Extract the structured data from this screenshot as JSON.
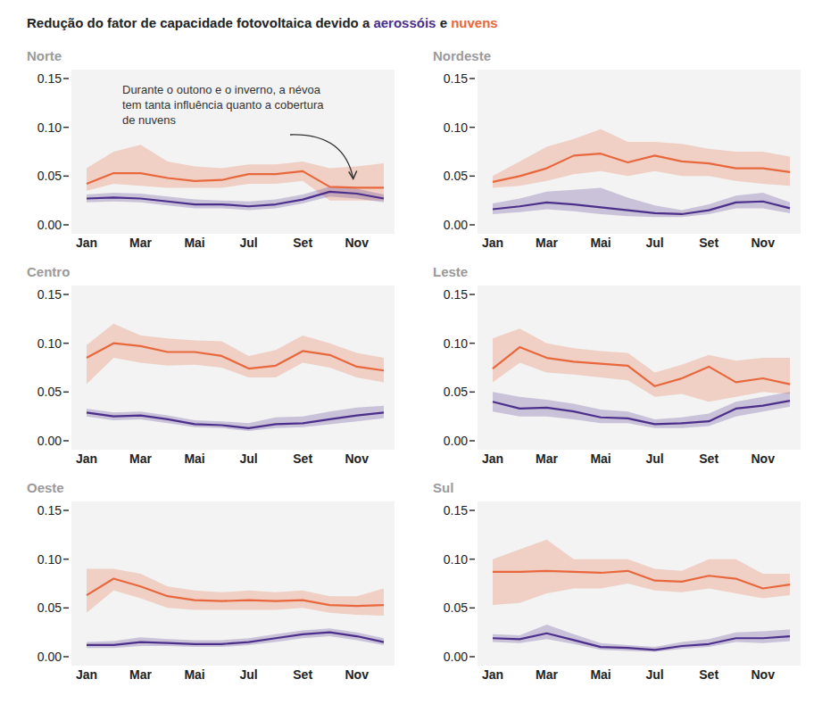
{
  "title": "Redução do fator de capacidade fotovoltaica devido a aerossóis e nuvens",
  "chart_data": [
    {
      "type": "line",
      "title": "Norte",
      "categories": [
        "Jan",
        null,
        "Mar",
        null,
        "Mai",
        null,
        "Jul",
        null,
        "Set",
        null,
        "Nov",
        null
      ],
      "ylim": [
        0,
        0.15
      ],
      "yticks": [
        {
          "value": 0,
          "label": "0.00"
        },
        {
          "value": 0.05,
          "label": "0.05"
        },
        {
          "value": 0.1,
          "label": "0.10"
        },
        {
          "value": 0.15,
          "label": "0.15"
        }
      ],
      "grid": false,
      "annotation": [
        "Durante o outono e o inverno, a névoa",
        " tem tanta influência quanto a cobertura",
        "de nuvens"
      ],
      "series": [
        {
          "name": "aerossóis",
          "color": "#4b2f8a",
          "values": [
            0.027,
            0.028,
            0.027,
            0.024,
            0.021,
            0.021,
            0.019,
            0.021,
            0.026,
            0.034,
            0.032,
            0.027
          ],
          "lower": [
            0.023,
            0.024,
            0.023,
            0.02,
            0.017,
            0.017,
            0.015,
            0.017,
            0.022,
            0.029,
            0.027,
            0.023
          ],
          "upper": [
            0.031,
            0.033,
            0.032,
            0.029,
            0.026,
            0.025,
            0.024,
            0.026,
            0.031,
            0.039,
            0.037,
            0.031
          ]
        },
        {
          "name": "nuvens",
          "color": "#e8673c",
          "values": [
            0.042,
            0.053,
            0.053,
            0.048,
            0.045,
            0.046,
            0.052,
            0.052,
            0.055,
            0.039,
            0.038,
            0.038
          ],
          "lower": [
            0.035,
            0.042,
            0.04,
            0.038,
            0.038,
            0.038,
            0.042,
            0.042,
            0.045,
            0.025,
            0.025,
            0.025
          ],
          "upper": [
            0.058,
            0.075,
            0.082,
            0.065,
            0.06,
            0.058,
            0.062,
            0.062,
            0.065,
            0.058,
            0.06,
            0.063
          ]
        }
      ]
    },
    {
      "type": "line",
      "title": "Nordeste",
      "categories": [
        "Jan",
        null,
        "Mar",
        null,
        "Mai",
        null,
        "Jul",
        null,
        "Set",
        null,
        "Nov",
        null
      ],
      "ylim": [
        0,
        0.15
      ],
      "yticks": [
        {
          "value": 0,
          "label": "0.00"
        },
        {
          "value": 0.05,
          "label": "0.05"
        },
        {
          "value": 0.1,
          "label": "0.10"
        },
        {
          "value": 0.15,
          "label": "0.15"
        }
      ],
      "grid": false,
      "series": [
        {
          "name": "aerossóis",
          "color": "#4b2f8a",
          "values": [
            0.016,
            0.019,
            0.023,
            0.021,
            0.018,
            0.015,
            0.012,
            0.011,
            0.015,
            0.023,
            0.024,
            0.017
          ],
          "lower": [
            0.011,
            0.013,
            0.016,
            0.014,
            0.011,
            0.009,
            0.008,
            0.008,
            0.011,
            0.017,
            0.017,
            0.012
          ],
          "upper": [
            0.022,
            0.027,
            0.034,
            0.036,
            0.038,
            0.028,
            0.02,
            0.015,
            0.021,
            0.03,
            0.033,
            0.023
          ]
        },
        {
          "name": "nuvens",
          "color": "#e8673c",
          "values": [
            0.044,
            0.05,
            0.058,
            0.071,
            0.073,
            0.064,
            0.071,
            0.065,
            0.063,
            0.058,
            0.058,
            0.054
          ],
          "lower": [
            0.038,
            0.04,
            0.045,
            0.052,
            0.055,
            0.05,
            0.055,
            0.05,
            0.05,
            0.045,
            0.042,
            0.04
          ],
          "upper": [
            0.05,
            0.065,
            0.08,
            0.088,
            0.098,
            0.085,
            0.085,
            0.083,
            0.078,
            0.075,
            0.075,
            0.07
          ]
        }
      ]
    },
    {
      "type": "line",
      "title": "Centro",
      "categories": [
        "Jan",
        null,
        "Mar",
        null,
        "Mai",
        null,
        "Jul",
        null,
        "Set",
        null,
        "Nov",
        null
      ],
      "ylim": [
        0,
        0.15
      ],
      "yticks": [
        {
          "value": 0,
          "label": "0.00"
        },
        {
          "value": 0.05,
          "label": "0.05"
        },
        {
          "value": 0.1,
          "label": "0.10"
        },
        {
          "value": 0.15,
          "label": "0.15"
        }
      ],
      "grid": false,
      "series": [
        {
          "name": "aerossóis",
          "color": "#4b2f8a",
          "values": [
            0.029,
            0.025,
            0.026,
            0.022,
            0.017,
            0.016,
            0.013,
            0.017,
            0.018,
            0.022,
            0.026,
            0.029
          ],
          "lower": [
            0.025,
            0.021,
            0.022,
            0.018,
            0.014,
            0.013,
            0.01,
            0.013,
            0.014,
            0.017,
            0.02,
            0.023
          ],
          "upper": [
            0.033,
            0.029,
            0.03,
            0.026,
            0.021,
            0.02,
            0.018,
            0.024,
            0.025,
            0.03,
            0.034,
            0.036
          ]
        },
        {
          "name": "nuvens",
          "color": "#e8673c",
          "values": [
            0.085,
            0.1,
            0.097,
            0.091,
            0.091,
            0.087,
            0.074,
            0.077,
            0.092,
            0.088,
            0.076,
            0.072
          ],
          "lower": [
            0.058,
            0.085,
            0.08,
            0.077,
            0.078,
            0.075,
            0.065,
            0.065,
            0.08,
            0.075,
            0.065,
            0.06
          ],
          "upper": [
            0.098,
            0.12,
            0.108,
            0.105,
            0.103,
            0.102,
            0.087,
            0.093,
            0.108,
            0.1,
            0.09,
            0.085
          ]
        }
      ]
    },
    {
      "type": "line",
      "title": "Leste",
      "categories": [
        "Jan",
        null,
        "Mar",
        null,
        "Mai",
        null,
        "Jul",
        null,
        "Set",
        null,
        "Nov",
        null
      ],
      "ylim": [
        0,
        0.15
      ],
      "yticks": [
        {
          "value": 0,
          "label": "0.00"
        },
        {
          "value": 0.05,
          "label": "0.05"
        },
        {
          "value": 0.1,
          "label": "0.10"
        },
        {
          "value": 0.15,
          "label": "0.15"
        }
      ],
      "grid": false,
      "series": [
        {
          "name": "aerossóis",
          "color": "#4b2f8a",
          "values": [
            0.04,
            0.033,
            0.034,
            0.03,
            0.024,
            0.023,
            0.017,
            0.018,
            0.02,
            0.033,
            0.036,
            0.041
          ],
          "lower": [
            0.03,
            0.025,
            0.025,
            0.022,
            0.018,
            0.018,
            0.013,
            0.013,
            0.015,
            0.025,
            0.03,
            0.035
          ],
          "upper": [
            0.05,
            0.045,
            0.042,
            0.038,
            0.032,
            0.03,
            0.022,
            0.024,
            0.028,
            0.04,
            0.045,
            0.05
          ]
        },
        {
          "name": "nuvens",
          "color": "#e8673c",
          "values": [
            0.074,
            0.096,
            0.085,
            0.081,
            0.079,
            0.077,
            0.056,
            0.064,
            0.076,
            0.06,
            0.064,
            0.058
          ],
          "lower": [
            0.06,
            0.08,
            0.07,
            0.068,
            0.065,
            0.062,
            0.045,
            0.048,
            0.04,
            0.045,
            0.05,
            0.048
          ],
          "upper": [
            0.105,
            0.115,
            0.1,
            0.095,
            0.092,
            0.09,
            0.07,
            0.078,
            0.088,
            0.082,
            0.085,
            0.085
          ]
        }
      ]
    },
    {
      "type": "line",
      "title": "Oeste",
      "categories": [
        "Jan",
        null,
        "Mar",
        null,
        "Mai",
        null,
        "Jul",
        null,
        "Set",
        null,
        "Nov",
        null
      ],
      "ylim": [
        0,
        0.15
      ],
      "yticks": [
        {
          "value": 0,
          "label": "0.00"
        },
        {
          "value": 0.05,
          "label": "0.05"
        },
        {
          "value": 0.1,
          "label": "0.10"
        },
        {
          "value": 0.15,
          "label": "0.15"
        }
      ],
      "grid": false,
      "series": [
        {
          "name": "aerossóis",
          "color": "#4b2f8a",
          "values": [
            0.012,
            0.012,
            0.015,
            0.014,
            0.013,
            0.013,
            0.015,
            0.019,
            0.023,
            0.025,
            0.021,
            0.015
          ],
          "lower": [
            0.009,
            0.009,
            0.011,
            0.011,
            0.01,
            0.01,
            0.012,
            0.015,
            0.019,
            0.021,
            0.017,
            0.012
          ],
          "upper": [
            0.015,
            0.016,
            0.02,
            0.018,
            0.017,
            0.017,
            0.019,
            0.023,
            0.027,
            0.029,
            0.025,
            0.019
          ]
        },
        {
          "name": "nuvens",
          "color": "#e8673c",
          "values": [
            0.063,
            0.08,
            0.072,
            0.062,
            0.058,
            0.057,
            0.058,
            0.057,
            0.058,
            0.053,
            0.052,
            0.053
          ],
          "lower": [
            0.045,
            0.068,
            0.06,
            0.05,
            0.048,
            0.048,
            0.048,
            0.048,
            0.05,
            0.045,
            0.043,
            0.042
          ],
          "upper": [
            0.09,
            0.09,
            0.085,
            0.072,
            0.068,
            0.066,
            0.068,
            0.066,
            0.068,
            0.062,
            0.062,
            0.07
          ]
        }
      ]
    },
    {
      "type": "line",
      "title": "Sul",
      "categories": [
        "Jan",
        null,
        "Mar",
        null,
        "Mai",
        null,
        "Jul",
        null,
        "Set",
        null,
        "Nov",
        null
      ],
      "ylim": [
        0,
        0.15
      ],
      "yticks": [
        {
          "value": 0,
          "label": "0.00"
        },
        {
          "value": 0.05,
          "label": "0.05"
        },
        {
          "value": 0.1,
          "label": "0.10"
        },
        {
          "value": 0.15,
          "label": "0.15"
        }
      ],
      "grid": false,
      "series": [
        {
          "name": "aerossóis",
          "color": "#4b2f8a",
          "values": [
            0.019,
            0.018,
            0.024,
            0.017,
            0.01,
            0.009,
            0.007,
            0.011,
            0.013,
            0.019,
            0.019,
            0.021
          ],
          "lower": [
            0.015,
            0.014,
            0.018,
            0.013,
            0.007,
            0.006,
            0.005,
            0.008,
            0.01,
            0.015,
            0.014,
            0.016
          ],
          "upper": [
            0.023,
            0.022,
            0.033,
            0.023,
            0.014,
            0.012,
            0.01,
            0.015,
            0.018,
            0.025,
            0.026,
            0.028
          ]
        },
        {
          "name": "nuvens",
          "color": "#e8673c",
          "values": [
            0.087,
            0.087,
            0.088,
            0.087,
            0.086,
            0.088,
            0.078,
            0.077,
            0.083,
            0.08,
            0.07,
            0.074
          ],
          "lower": [
            0.053,
            0.055,
            0.065,
            0.07,
            0.07,
            0.075,
            0.068,
            0.066,
            0.07,
            0.065,
            0.06,
            0.063
          ],
          "upper": [
            0.1,
            0.11,
            0.12,
            0.1,
            0.1,
            0.1,
            0.09,
            0.088,
            0.1,
            0.1,
            0.085,
            0.085
          ]
        }
      ]
    }
  ]
}
